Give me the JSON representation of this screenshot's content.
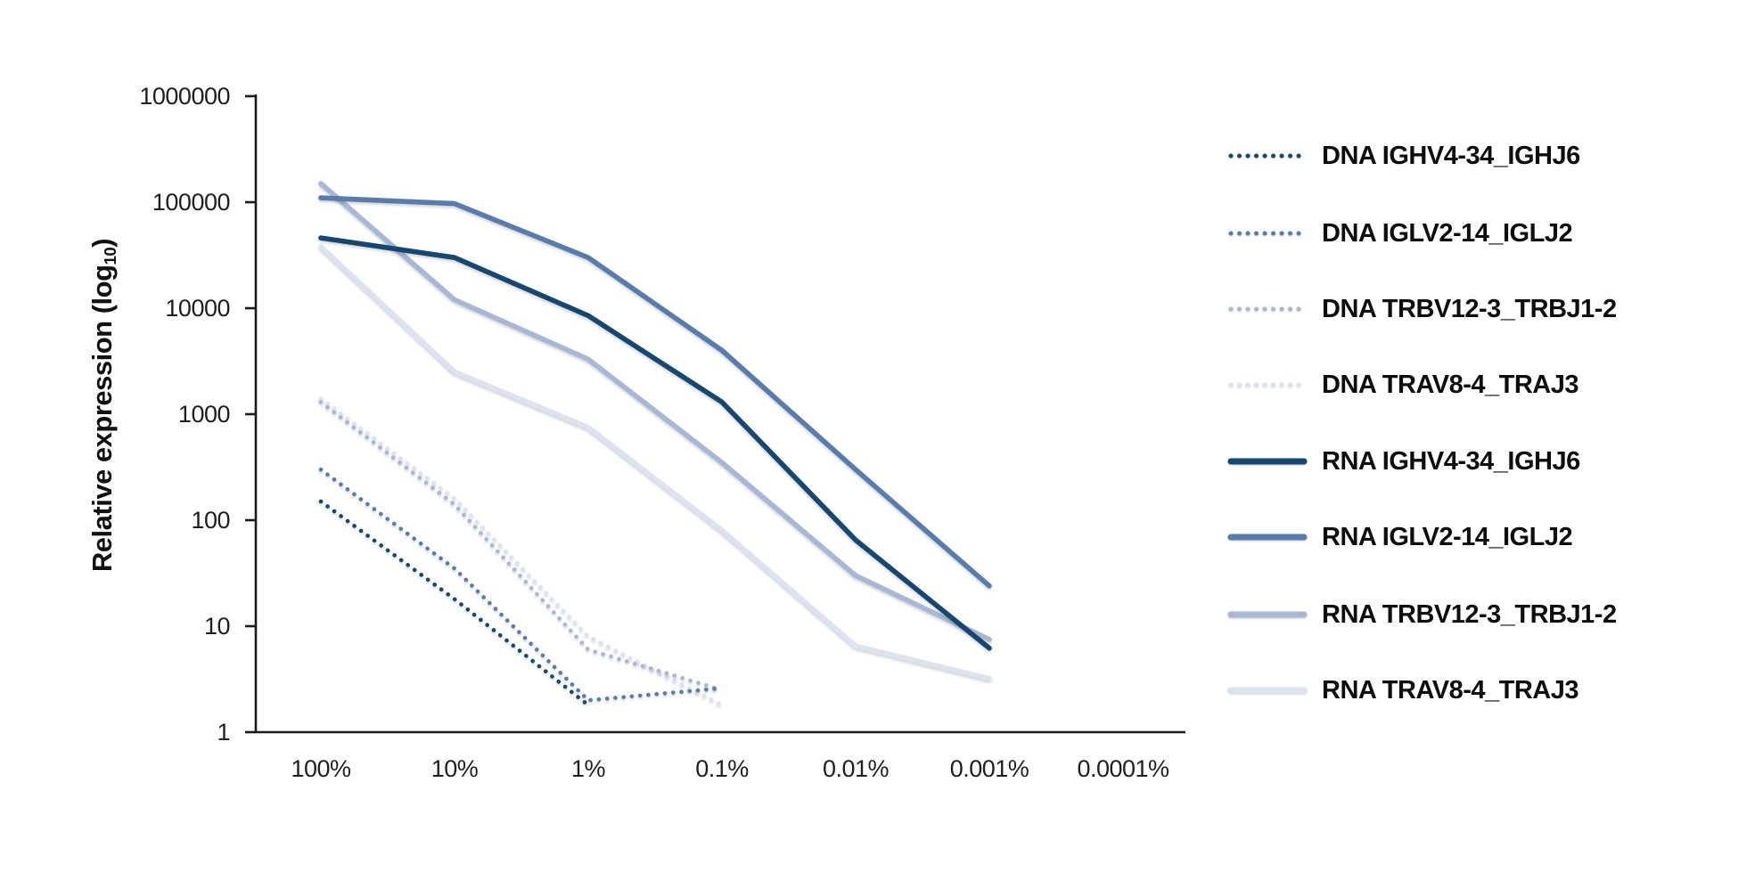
{
  "figure": {
    "background": "#ffffff",
    "axis_color": "#1b1b1b"
  },
  "y_axis": {
    "title_main": "Relative expression (log",
    "title_sub": "10",
    "title_close": ")",
    "tick_labels": [
      "1000000",
      "100000",
      "10000",
      "1000",
      "100",
      "10",
      "1"
    ]
  },
  "x_axis": {
    "tick_labels": [
      "100%",
      "10%",
      "1%",
      "0.1%",
      "0.01%",
      "0.001%",
      "0.0001%"
    ]
  },
  "chart_data": {
    "type": "line",
    "x_scale": "category",
    "y_scale": "log10",
    "ylim": [
      1,
      1000000
    ],
    "grid": false,
    "legend_position": "right",
    "ylabel": "Relative expression (log10)",
    "categories": [
      "100%",
      "10%",
      "1%",
      "0.1%",
      "0.01%",
      "0.001%",
      "0.0001%"
    ],
    "series": [
      {
        "name": "DNA IGHV4-34_IGHJ6",
        "color": "#17466F",
        "line_style": "dotted",
        "values": [
          150,
          18,
          1.8,
          null,
          null,
          null,
          null
        ]
      },
      {
        "name": "DNA IGLV2-14_IGLJ2",
        "color": "#5A7CAC",
        "line_style": "dotted",
        "values": [
          300,
          35,
          2,
          2.6,
          null,
          null,
          null
        ]
      },
      {
        "name": "DNA TRBV12-3_TRBJ1-2",
        "color": "#A9B7D4",
        "line_style": "dotted",
        "values": [
          1300,
          140,
          6,
          2.5,
          null,
          null,
          null
        ]
      },
      {
        "name": "DNA TRAV8-4_TRAJ3",
        "color": "#DCE2F0",
        "line_style": "dotted",
        "values": [
          1400,
          160,
          8,
          1.8,
          null,
          null,
          null
        ]
      },
      {
        "name": "RNA IGHV4-34_IGHJ6",
        "color": "#17466F",
        "line_style": "solid",
        "values": [
          46000,
          30000,
          8500,
          1300,
          65,
          6.2,
          null
        ]
      },
      {
        "name": "RNA IGLV2-14_IGLJ2",
        "color": "#5A7CAC",
        "line_style": "solid",
        "values": [
          110000,
          97000,
          30000,
          4000,
          300,
          24,
          null
        ]
      },
      {
        "name": "RNA TRBV12-3_TRBJ1-2",
        "color": "#A9B7D4",
        "line_style": "solid",
        "values": [
          150000,
          12000,
          3300,
          350,
          30,
          7.5,
          null
        ]
      },
      {
        "name": "RNA TRAV8-4_TRAJ3",
        "color": "#DCE2F0",
        "line_style": "solid",
        "values": [
          38000,
          2500,
          750,
          80,
          6.5,
          3.2,
          null
        ]
      }
    ]
  }
}
